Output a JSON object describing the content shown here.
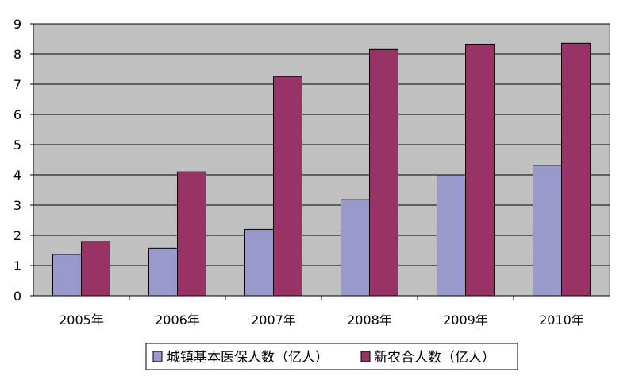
{
  "chart_data": {
    "type": "bar",
    "categories": [
      "2005年",
      "2006年",
      "2007年",
      "2008年",
      "2009年",
      "2010年"
    ],
    "series": [
      {
        "name": "城镇基本医保人数（亿人）",
        "values": [
          1.37,
          1.57,
          2.2,
          3.18,
          4.0,
          4.32
        ],
        "color": "#9999cc"
      },
      {
        "name": "新农合人数（亿人）",
        "values": [
          1.79,
          4.1,
          7.26,
          8.15,
          8.33,
          8.36
        ],
        "color": "#993366"
      }
    ],
    "ylim": [
      0,
      9
    ],
    "yticks": [
      "0",
      "1",
      "2",
      "3",
      "4",
      "5",
      "6",
      "7",
      "8",
      "9"
    ],
    "grid": true,
    "plot_background": "#c0c0c0",
    "legend_position": "bottom"
  }
}
